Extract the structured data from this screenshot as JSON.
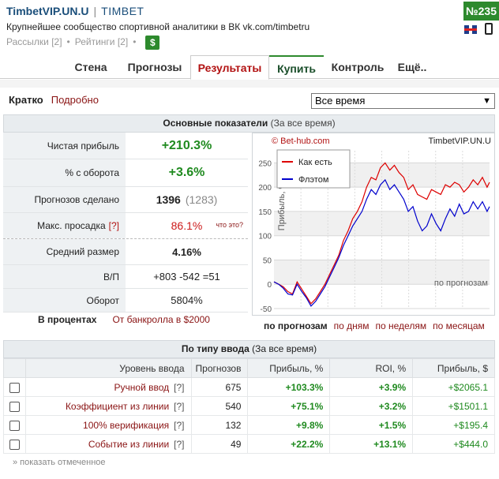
{
  "header": {
    "site_name": "TimbetVIP.UN.U",
    "separator": "|",
    "brand": "TIMBET",
    "tagline": "Крупнейшее сообщество спортивной аналитики в ВК vk.com/timbetru",
    "link_mailings": "Рассылки [2]",
    "link_ratings": "Рейтинги [2]",
    "dollar_label": "$",
    "rank_badge": "№235"
  },
  "tabs": [
    {
      "label": "Стена"
    },
    {
      "label": "Прогнозы"
    },
    {
      "label": "Результаты"
    },
    {
      "label": "Купить"
    },
    {
      "label": "Контроль"
    },
    {
      "label": "Ещё.."
    }
  ],
  "filters": {
    "mode_brief": "Кратко",
    "mode_detailed": "Подробно",
    "period_value": "Все время"
  },
  "main": {
    "title": "Основные показатели",
    "subtitle": "(За все время)",
    "net_profit_label": "Чистая прибыль",
    "net_profit_value": "+210.3%",
    "turnover_pct_label": "% с оборота",
    "turnover_pct_value": "+3.6%",
    "tips_label": "Прогнозов сделано",
    "tips_value": "1396",
    "tips_sub": "(1283)",
    "drawdown_label": "Макс. просадка",
    "drawdown_q": "[?]",
    "drawdown_value": "86.1%",
    "drawdown_what": "что это?",
    "avg_size_label": "Средний размер",
    "avg_size_value": "4.16%",
    "wl_label": "В/П",
    "wl_value": "+803 -542 =51",
    "turnover_label": "Оборот",
    "turnover_value": "5804%",
    "in_percent": "В процентах",
    "from_bank": "От банкролла в $2000"
  },
  "chart_links": {
    "by_tips": "по прогнозам",
    "by_days": "по дням",
    "by_weeks": "по неделям",
    "by_months": "по месяцам"
  },
  "chart_data": {
    "type": "line",
    "copyright": "© Bet-hub.com",
    "watermark": "TimbetVIP.UN.U",
    "ylabel": "Прибыль, %",
    "xlabel": "по прогнозам",
    "ylim": [
      -50,
      275
    ],
    "yticks": [
      -50,
      0,
      50,
      100,
      150,
      200,
      250
    ],
    "xlim": [
      0,
      1396
    ],
    "legend_position": "top-left",
    "colors": {
      "as_is": "#dd0000",
      "flat": "#0000cc"
    },
    "series": [
      {
        "name": "Как есть",
        "x": [
          0,
          30,
          60,
          90,
          120,
          150,
          180,
          210,
          240,
          270,
          300,
          330,
          360,
          390,
          420,
          450,
          480,
          510,
          540,
          570,
          600,
          630,
          660,
          690,
          720,
          750,
          780,
          810,
          840,
          870,
          900,
          930,
          960,
          990,
          1020,
          1050,
          1080,
          1110,
          1140,
          1170,
          1200,
          1230,
          1260,
          1290,
          1320,
          1350,
          1380,
          1396
        ],
        "values": [
          5,
          0,
          -5,
          -15,
          -20,
          5,
          -10,
          -25,
          -40,
          -30,
          -15,
          0,
          20,
          40,
          60,
          90,
          110,
          135,
          150,
          170,
          200,
          220,
          215,
          240,
          250,
          235,
          245,
          230,
          220,
          195,
          205,
          185,
          180,
          175,
          195,
          190,
          185,
          205,
          200,
          210,
          205,
          190,
          200,
          215,
          205,
          220,
          200,
          210
        ]
      },
      {
        "name": "Флэтом",
        "x": [
          0,
          30,
          60,
          90,
          120,
          150,
          180,
          210,
          240,
          270,
          300,
          330,
          360,
          390,
          420,
          450,
          480,
          510,
          540,
          570,
          600,
          630,
          660,
          690,
          720,
          750,
          780,
          810,
          840,
          870,
          900,
          930,
          960,
          990,
          1020,
          1050,
          1080,
          1110,
          1140,
          1170,
          1200,
          1230,
          1260,
          1290,
          1320,
          1350,
          1380,
          1396
        ],
        "values": [
          5,
          0,
          -8,
          -20,
          -22,
          0,
          -15,
          -28,
          -45,
          -35,
          -20,
          -5,
          15,
          35,
          55,
          80,
          100,
          120,
          135,
          150,
          175,
          195,
          185,
          205,
          215,
          195,
          205,
          190,
          175,
          150,
          160,
          130,
          110,
          120,
          145,
          125,
          110,
          135,
          155,
          140,
          165,
          145,
          150,
          170,
          155,
          170,
          150,
          160
        ]
      }
    ]
  },
  "entry": {
    "title": "По типу ввода",
    "subtitle": "(За все время)",
    "columns": [
      "Уровень ввода",
      "Прогнозов",
      "Прибыль, %",
      "ROI, %",
      "Прибыль, $"
    ],
    "rows": [
      {
        "level": "Ручной ввод",
        "q": "[?]",
        "tips": "675",
        "profit_pct": "+103.3%",
        "roi": "+3.9%",
        "profit_usd": "+$2065.1"
      },
      {
        "level": "Коэффициент из линии",
        "q": "[?]",
        "tips": "540",
        "profit_pct": "+75.1%",
        "roi": "+3.2%",
        "profit_usd": "+$1501.1"
      },
      {
        "level": "100% верификация",
        "q": "[?]",
        "tips": "132",
        "profit_pct": "+9.8%",
        "roi": "+1.5%",
        "profit_usd": "+$195.4"
      },
      {
        "level": "Событие из линии",
        "q": "[?]",
        "tips": "49",
        "profit_pct": "+22.2%",
        "roi": "+13.1%",
        "profit_usd": "+$444.0"
      }
    ],
    "show_selected": "» показать отмеченное"
  }
}
